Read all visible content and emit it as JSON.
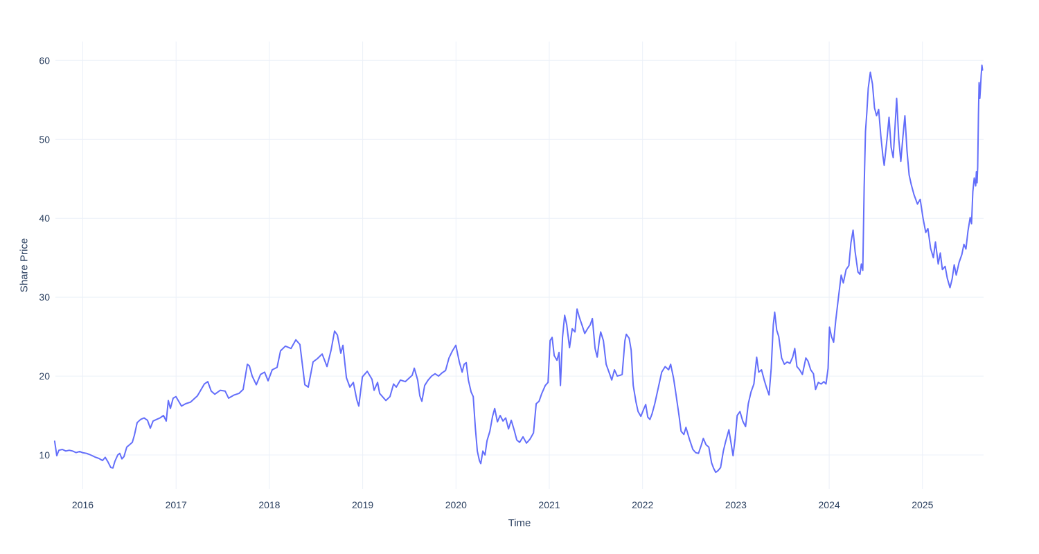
{
  "axis_titles": {
    "y": "Share Price",
    "x": "Time"
  },
  "chart_data": {
    "type": "line",
    "title": "",
    "xlabel": "Time",
    "ylabel": "Share Price",
    "legend": "none",
    "grid": true,
    "background_color": "#ffffff",
    "grid_color": "#ebf0f8",
    "tick_text_color": "#2a3f5f",
    "line_color": "#636efa",
    "line_width": 2,
    "xlim": [
      2015.707,
      2025.655
    ],
    "ylim": [
      5.7,
      62.4
    ],
    "x_tick_values": [
      2016,
      2017,
      2018,
      2019,
      2020,
      2021,
      2022,
      2023,
      2024,
      2025
    ],
    "x_tick_labels": [
      "2016",
      "2017",
      "2018",
      "2019",
      "2020",
      "2021",
      "2022",
      "2023",
      "2024",
      "2025"
    ],
    "y_tick_values": [
      10,
      20,
      30,
      40,
      50,
      60
    ],
    "y_tick_labels": [
      "10",
      "20",
      "30",
      "40",
      "50",
      "60"
    ],
    "series": [
      {
        "name": "Share Price",
        "x": [
          2015.699,
          2015.722,
          2015.744,
          2015.781,
          2015.818,
          2015.855,
          2015.892,
          2015.929,
          2015.967,
          2015.996,
          2016.041,
          2016.085,
          2016.13,
          2016.175,
          2016.212,
          2016.241,
          2016.271,
          2016.301,
          2016.323,
          2016.345,
          2016.375,
          2016.397,
          2016.42,
          2016.442,
          2016.472,
          2016.501,
          2016.531,
          2016.553,
          2016.583,
          2016.62,
          2016.657,
          2016.694,
          2016.724,
          2016.754,
          2016.791,
          2016.828,
          2016.865,
          2016.895,
          2016.917,
          2016.939,
          2016.969,
          2016.999,
          2017.058,
          2017.103,
          2017.155,
          2017.229,
          2017.303,
          2017.34,
          2017.377,
          2017.415,
          2017.474,
          2017.526,
          2017.563,
          2017.622,
          2017.674,
          2017.719,
          2017.764,
          2017.786,
          2017.816,
          2017.86,
          2017.905,
          2017.949,
          2017.986,
          2018.031,
          2018.083,
          2018.12,
          2018.172,
          2018.232,
          2018.284,
          2018.328,
          2018.38,
          2018.417,
          2018.469,
          2018.514,
          2018.566,
          2018.618,
          2018.662,
          2018.699,
          2018.729,
          2018.766,
          2018.789,
          2018.826,
          2018.863,
          2018.9,
          2018.937,
          2018.959,
          2018.997,
          2019.049,
          2019.1,
          2019.123,
          2019.16,
          2019.182,
          2019.219,
          2019.249,
          2019.293,
          2019.331,
          2019.36,
          2019.405,
          2019.457,
          2019.494,
          2019.531,
          2019.553,
          2019.59,
          2019.613,
          2019.635,
          2019.665,
          2019.702,
          2019.739,
          2019.776,
          2019.813,
          2019.85,
          2019.888,
          2019.925,
          2019.962,
          2019.999,
          2020.036,
          2020.066,
          2020.088,
          2020.11,
          2020.133,
          2020.162,
          2020.185,
          2020.207,
          2020.229,
          2020.251,
          2020.266,
          2020.288,
          2020.311,
          2020.333,
          2020.363,
          2020.392,
          2020.415,
          2020.444,
          2020.474,
          2020.504,
          2020.533,
          2020.563,
          2020.593,
          2020.623,
          2020.652,
          2020.682,
          2020.719,
          2020.756,
          2020.793,
          2020.831,
          2020.86,
          2020.89,
          2020.92,
          2020.957,
          2020.987,
          2021.009,
          2021.031,
          2021.053,
          2021.083,
          2021.105,
          2021.12,
          2021.142,
          2021.165,
          2021.187,
          2021.217,
          2021.246,
          2021.276,
          2021.298,
          2021.321,
          2021.35,
          2021.38,
          2021.41,
          2021.44,
          2021.462,
          2021.491,
          2021.514,
          2021.536,
          2021.551,
          2021.58,
          2021.61,
          2021.64,
          2021.67,
          2021.699,
          2021.729,
          2021.759,
          2021.781,
          2021.811,
          2021.826,
          2021.856,
          2021.878,
          2021.9,
          2021.93,
          2021.952,
          2021.982,
          2022.012,
          2022.034,
          2022.056,
          2022.079,
          2022.101,
          2022.131,
          2022.168,
          2022.205,
          2022.242,
          2022.279,
          2022.301,
          2022.331,
          2022.354,
          2022.391,
          2022.413,
          2022.443,
          2022.465,
          2022.502,
          2022.539,
          2022.569,
          2022.599,
          2022.628,
          2022.651,
          2022.68,
          2022.71,
          2022.74,
          2022.762,
          2022.784,
          2022.807,
          2022.836,
          2022.866,
          2022.888,
          2022.925,
          2022.948,
          2022.97,
          2022.992,
          2023.014,
          2023.044,
          2023.074,
          2023.104,
          2023.133,
          2023.163,
          2023.193,
          2023.223,
          2023.245,
          2023.275,
          2023.304,
          2023.327,
          2023.356,
          2023.379,
          2023.401,
          2023.416,
          2023.438,
          2023.46,
          2023.49,
          2023.52,
          2023.55,
          2023.579,
          2023.609,
          2023.631,
          2023.654,
          2023.683,
          2023.713,
          2023.75,
          2023.773,
          2023.802,
          2023.832,
          2023.854,
          2023.884,
          2023.914,
          2023.944,
          2023.966,
          2023.988,
          2024.003,
          2024.025,
          2024.048,
          2024.07,
          2024.1,
          2024.129,
          2024.152,
          2024.181,
          2024.211,
          2024.233,
          2024.256,
          2024.278,
          2024.308,
          2024.33,
          2024.345,
          2024.36,
          2024.375,
          2024.389,
          2024.404,
          2024.419,
          2024.441,
          2024.464,
          2024.486,
          2024.508,
          2024.53,
          2024.553,
          2024.575,
          2024.59,
          2024.619,
          2024.642,
          2024.664,
          2024.686,
          2024.708,
          2024.723,
          2024.746,
          2024.768,
          2024.79,
          2024.812,
          2024.835,
          2024.857,
          2024.879,
          2024.909,
          2024.946,
          2024.976,
          2025.006,
          2025.035,
          2025.058,
          2025.087,
          2025.117,
          2025.139,
          2025.169,
          2025.191,
          2025.213,
          2025.243,
          2025.266,
          2025.295,
          2025.318,
          2025.34,
          2025.362,
          2025.392,
          2025.422,
          2025.444,
          2025.466,
          2025.488,
          2025.511,
          2025.526,
          2025.54,
          2025.555,
          2025.57,
          2025.578,
          2025.585,
          2025.592,
          2025.6,
          2025.607,
          2025.615,
          2025.622,
          2025.629,
          2025.637,
          2025.644
        ],
        "y": [
          11.75,
          9.9,
          10.6,
          10.7,
          10.5,
          10.6,
          10.5,
          10.3,
          10.45,
          10.3,
          10.2,
          10.0,
          9.75,
          9.55,
          9.3,
          9.7,
          9.1,
          8.4,
          8.35,
          9.2,
          10.0,
          10.2,
          9.5,
          9.8,
          11.0,
          11.3,
          11.6,
          12.5,
          14.1,
          14.5,
          14.7,
          14.4,
          13.4,
          14.3,
          14.5,
          14.7,
          15.0,
          14.3,
          16.9,
          15.9,
          17.2,
          17.4,
          16.2,
          16.5,
          16.7,
          17.5,
          19.0,
          19.3,
          18.1,
          17.7,
          18.2,
          18.1,
          17.2,
          17.6,
          17.8,
          18.3,
          21.5,
          21.3,
          20.0,
          18.9,
          20.2,
          20.5,
          19.4,
          20.8,
          21.1,
          23.2,
          23.8,
          23.5,
          24.6,
          24.0,
          18.9,
          18.6,
          21.8,
          22.2,
          22.8,
          21.2,
          23.3,
          25.7,
          25.2,
          22.9,
          23.9,
          19.8,
          18.6,
          19.2,
          17.0,
          16.2,
          19.9,
          20.6,
          19.6,
          18.2,
          19.2,
          17.8,
          17.3,
          16.9,
          17.4,
          19.0,
          18.6,
          19.5,
          19.3,
          19.7,
          20.1,
          21.0,
          19.5,
          17.5,
          16.8,
          18.8,
          19.5,
          20.0,
          20.3,
          20.0,
          20.4,
          20.7,
          22.3,
          23.2,
          23.9,
          21.8,
          20.5,
          21.5,
          21.7,
          19.5,
          18.0,
          17.4,
          13.5,
          10.5,
          9.3,
          8.9,
          10.5,
          10.0,
          11.8,
          13.0,
          14.9,
          15.9,
          14.2,
          15.0,
          14.3,
          14.7,
          13.3,
          14.4,
          13.2,
          11.9,
          11.6,
          12.3,
          11.5,
          12.0,
          12.8,
          16.5,
          16.8,
          17.8,
          18.8,
          19.2,
          24.5,
          24.9,
          22.6,
          22.0,
          23.0,
          18.8,
          24.9,
          27.7,
          26.5,
          23.6,
          26.0,
          25.6,
          28.5,
          27.5,
          26.5,
          25.4,
          26.0,
          26.5,
          27.3,
          23.5,
          22.4,
          24.5,
          25.6,
          24.5,
          21.5,
          20.5,
          19.5,
          20.8,
          20.0,
          20.1,
          20.2,
          24.5,
          25.3,
          24.8,
          23.3,
          18.8,
          16.7,
          15.5,
          14.9,
          15.8,
          16.4,
          14.8,
          14.5,
          15.2,
          16.5,
          18.5,
          20.5,
          21.2,
          20.8,
          21.5,
          19.8,
          18.0,
          15.0,
          13.0,
          12.6,
          13.5,
          12.0,
          10.7,
          10.3,
          10.2,
          11.2,
          12.1,
          11.3,
          11.0,
          9.0,
          8.3,
          7.8,
          8.0,
          8.4,
          10.5,
          11.6,
          13.2,
          11.5,
          9.9,
          12.1,
          15.0,
          15.5,
          14.3,
          13.6,
          16.5,
          18.0,
          19.0,
          22.4,
          20.5,
          20.8,
          19.5,
          18.6,
          17.6,
          21.0,
          26.5,
          28.1,
          25.8,
          25.0,
          22.3,
          21.5,
          21.8,
          21.6,
          22.4,
          23.5,
          21.2,
          20.8,
          20.2,
          22.3,
          21.9,
          20.8,
          20.3,
          18.3,
          19.2,
          19.0,
          19.3,
          19.0,
          21.0,
          26.2,
          25.0,
          24.3,
          27.0,
          30.0,
          32.8,
          31.8,
          33.5,
          34.0,
          36.9,
          38.5,
          35.8,
          33.2,
          32.9,
          34.2,
          33.4,
          44.0,
          51.0,
          53.5,
          56.5,
          58.5,
          57.0,
          54.0,
          53.0,
          53.8,
          50.5,
          48.0,
          46.7,
          50.0,
          52.8,
          49.0,
          47.7,
          52.0,
          55.2,
          50.0,
          47.2,
          50.3,
          53.0,
          48.5,
          45.5,
          44.3,
          43.0,
          41.8,
          42.4,
          40.0,
          38.2,
          38.7,
          36.2,
          35.0,
          37.0,
          34.2,
          35.6,
          33.5,
          33.9,
          32.4,
          31.2,
          32.3,
          34.1,
          32.8,
          34.4,
          35.4,
          36.7,
          36.1,
          38.4,
          40.1,
          39.3,
          43.4,
          45.1,
          44.1,
          45.9,
          44.5,
          46.5,
          53.2,
          57.2,
          55.2,
          56.6,
          58.1,
          59.4,
          58.8
        ]
      }
    ]
  }
}
